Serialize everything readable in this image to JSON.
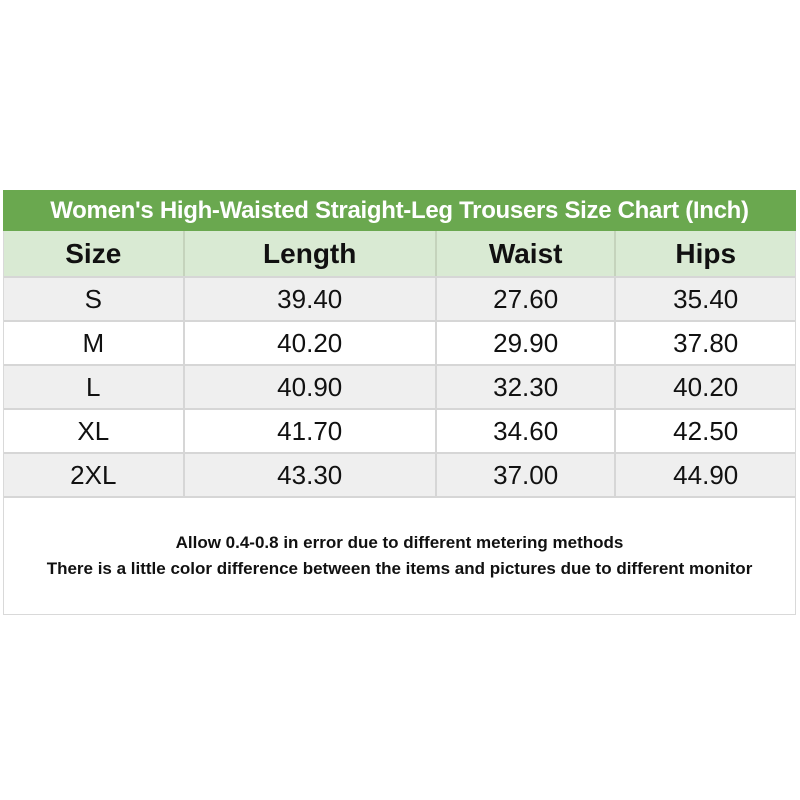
{
  "chart_data": {
    "type": "table",
    "title": "Women's High-Waisted Straight-Leg Trousers Size Chart (Inch)",
    "unit": "Inch",
    "columns": [
      "Size",
      "Length",
      "Waist",
      "Hips"
    ],
    "rows": [
      [
        "S",
        "39.40",
        "27.60",
        "35.40"
      ],
      [
        "M",
        "40.20",
        "29.90",
        "37.80"
      ],
      [
        "L",
        "40.90",
        "32.30",
        "40.20"
      ],
      [
        "XL",
        "41.70",
        "34.60",
        "42.50"
      ],
      [
        "2XL",
        "43.30",
        "37.00",
        "44.90"
      ]
    ],
    "notes": [
      "Allow 0.4-0.8 in error due to different metering methods",
      "There is a little color difference between the items and pictures due to different monitor"
    ],
    "layout_hints": {
      "row_striping": "alternating gray/white starting gray",
      "alignment": "center"
    }
  },
  "colors": {
    "title_bar_green": "#6aa84f",
    "header_row_green": "#d9ead3",
    "alt_row_gray": "#efefef",
    "plain_row_white": "#ffffff",
    "border_gray": "#d6d6d6",
    "header_divider_green_gray": "#c5d3bc",
    "title_text": "#ffffff",
    "body_text": "#111111"
  }
}
